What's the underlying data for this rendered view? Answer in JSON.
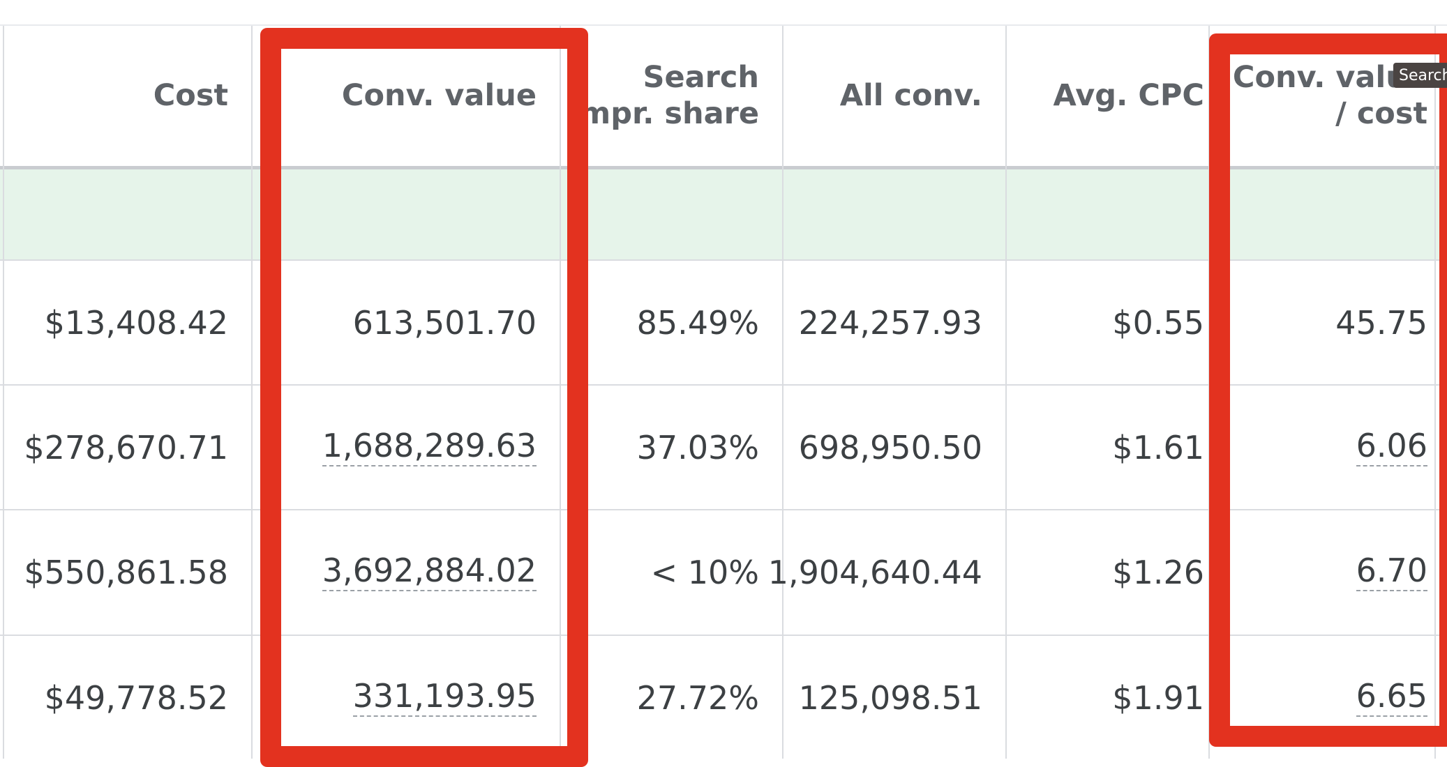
{
  "table": {
    "headers": [
      "Cost",
      "Conv. value",
      "Search\nimpr. share",
      "All conv.",
      "Avg. CPC",
      "Conv. value\n/ cost"
    ],
    "rows": [
      [
        "$13,408.42",
        "613,501.70",
        "85.49%",
        "224,257.93",
        "$0.55",
        "45.75"
      ],
      [
        "$278,670.71",
        "1,688,289.63",
        "37.03%",
        "698,950.50",
        "$1.61",
        "6.06"
      ],
      [
        "$550,861.58",
        "3,692,884.02",
        "< 10%",
        "1,904,640.44",
        "$1.26",
        "6.70"
      ],
      [
        "$49,778.52",
        "331,193.95",
        "27.72%",
        "125,098.51",
        "$1.91",
        "6.65"
      ]
    ]
  },
  "tooltip": "Search"
}
